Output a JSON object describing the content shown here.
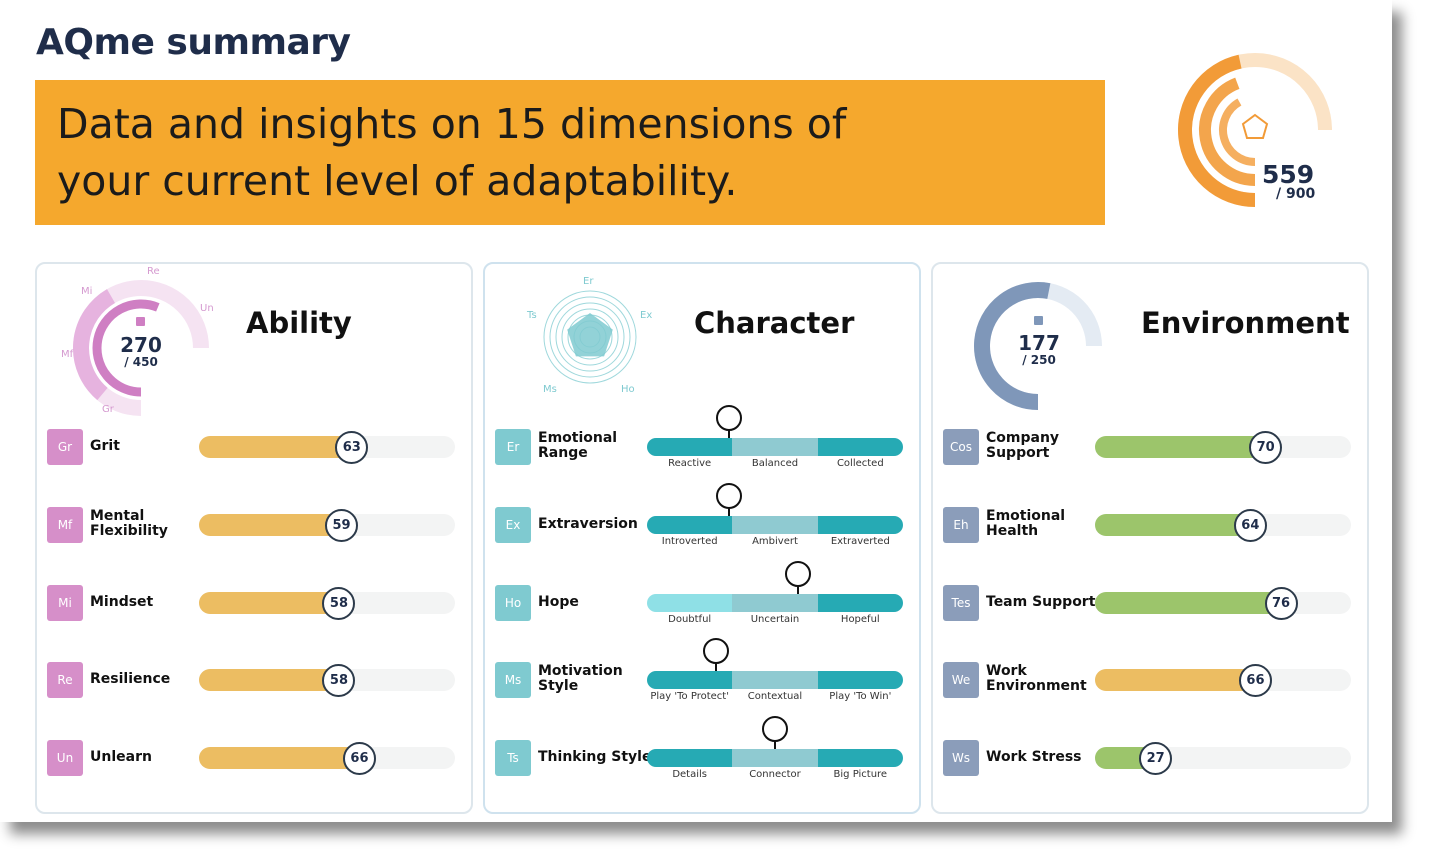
{
  "header": {
    "title": "AQme summary",
    "banner_line1": "Data and insights on 15 dimensions of",
    "banner_line2": "your current level of adaptability."
  },
  "overall": {
    "score": "559",
    "max": "/ 900",
    "fraction": 0.621,
    "color": "#f29b38",
    "icon": "pentagon-icon"
  },
  "ability": {
    "title": "Ability",
    "score": "270",
    "max": "/ 450",
    "fraction": 0.6,
    "color": "#cf7fc3",
    "tags": [
      "Re",
      "Un",
      "Mi",
      "Mf",
      "Gr"
    ],
    "items": [
      {
        "badge": "Gr",
        "label": "Grit",
        "value": 63
      },
      {
        "badge": "Mf",
        "label": "Mental Flexibility",
        "value": 59
      },
      {
        "badge": "Mi",
        "label": "Mindset",
        "value": 58
      },
      {
        "badge": "Re",
        "label": "Resilience",
        "value": 58
      },
      {
        "badge": "Un",
        "label": "Unlearn",
        "value": 66
      }
    ]
  },
  "character": {
    "title": "Character",
    "tags": [
      "Er",
      "Ex",
      "Ho",
      "Ms",
      "Ts"
    ],
    "items": [
      {
        "badge": "Er",
        "label": "Emotional Range",
        "labels": [
          "Reactive",
          "Balanced",
          "Collected"
        ],
        "position": 0.32
      },
      {
        "badge": "Ex",
        "label": "Extraversion",
        "labels": [
          "Introverted",
          "Ambivert",
          "Extraverted"
        ],
        "position": 0.32
      },
      {
        "badge": "Ho",
        "label": "Hope",
        "labels": [
          "Doubtful",
          "Uncertain",
          "Hopeful"
        ],
        "position": 0.59
      },
      {
        "badge": "Ms",
        "label": "Motivation Style",
        "labels": [
          "Play 'To Protect'",
          "Contextual",
          "Play 'To Win'"
        ],
        "position": 0.27
      },
      {
        "badge": "Ts",
        "label": "Thinking Style",
        "labels": [
          "Details",
          "Connector",
          "Big Picture"
        ],
        "position": 0.5
      }
    ]
  },
  "environment": {
    "title": "Environment",
    "score": "177",
    "max": "/ 250",
    "fraction": 0.708,
    "color": "#7f97b9",
    "items": [
      {
        "badge": "Cos",
        "label": "Company Support",
        "value": 70,
        "color": "#9cc56b"
      },
      {
        "badge": "Eh",
        "label": "Emotional Health",
        "value": 64,
        "color": "#9cc56b"
      },
      {
        "badge": "Tes",
        "label": "Team Support",
        "value": 76,
        "color": "#9cc56b"
      },
      {
        "badge": "We",
        "label": "Work Environment",
        "value": 66,
        "color": "#ecbd62"
      },
      {
        "badge": "Ws",
        "label": "Work Stress",
        "value": 27,
        "color": "#9cc56b"
      }
    ]
  },
  "colors": {
    "ability_badge": "#d68fc9",
    "ability_fill": "#ecbd62",
    "character_badge": "#7fcad0",
    "environment_badge": "#8b9dba"
  }
}
